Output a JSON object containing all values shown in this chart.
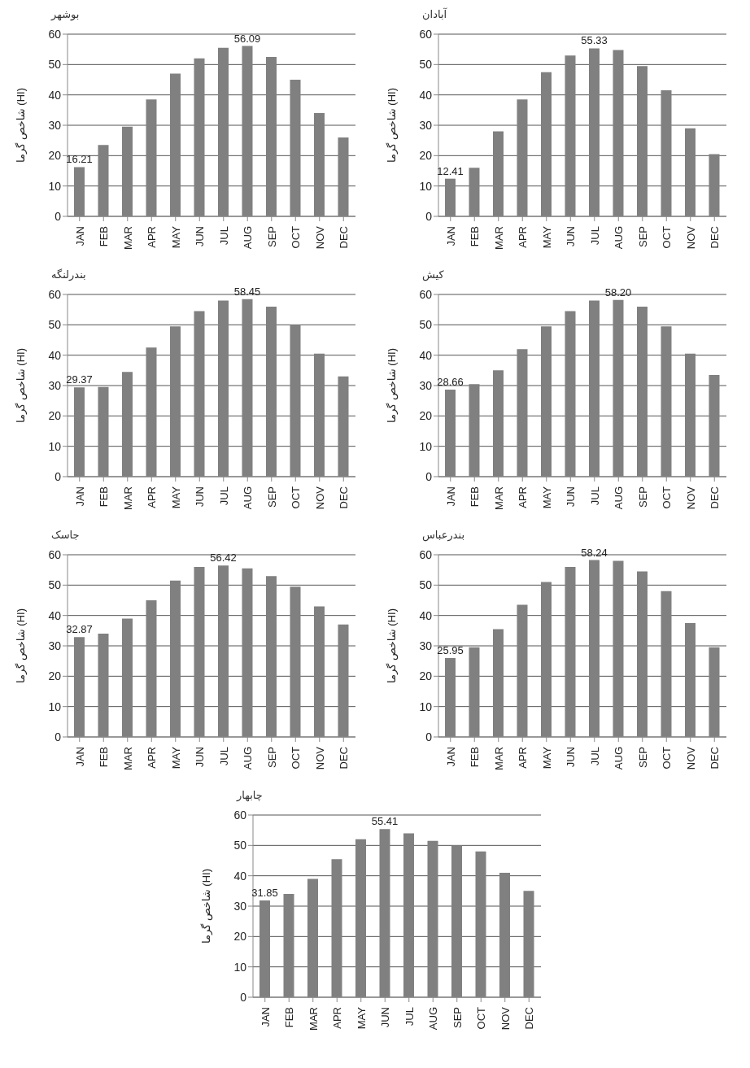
{
  "chart_data": [
    {
      "type": "bar",
      "title": "بوشهر",
      "ylabel": "شاخص گرما (HI)",
      "categories": [
        "JAN",
        "FEB",
        "MAR",
        "APR",
        "MAY",
        "JUN",
        "JUL",
        "AUG",
        "SEP",
        "OCT",
        "NOV",
        "DEC"
      ],
      "values": [
        16.21,
        23.5,
        29.5,
        38.5,
        47,
        52,
        55.5,
        56.09,
        52.5,
        45,
        34,
        26
      ],
      "value_labels": [
        "16.21",
        null,
        null,
        null,
        null,
        null,
        null,
        "56.09",
        null,
        null,
        null,
        null
      ],
      "color": "#808080",
      "ylim": [
        0,
        60
      ],
      "yticks": [
        0,
        10,
        20,
        30,
        40,
        50,
        60
      ],
      "grid": "y",
      "legend": false
    },
    {
      "type": "bar",
      "title": "آبادان",
      "ylabel": "شاخص گرما (HI)",
      "categories": [
        "JAN",
        "FEB",
        "MAR",
        "APR",
        "MAY",
        "JUN",
        "JUL",
        "AUG",
        "SEP",
        "OCT",
        "NOV",
        "DEC"
      ],
      "values": [
        12.41,
        16,
        28,
        38.5,
        47.5,
        53,
        55.33,
        54.8,
        49.5,
        41.5,
        29,
        20.5
      ],
      "value_labels": [
        "12.41",
        null,
        null,
        null,
        null,
        null,
        "55.33",
        null,
        null,
        null,
        null,
        null
      ],
      "color": "#808080",
      "ylim": [
        0,
        60
      ],
      "yticks": [
        0,
        10,
        20,
        30,
        40,
        50,
        60
      ],
      "grid": "y",
      "legend": false
    },
    {
      "type": "bar",
      "title": "بندرلنگه",
      "ylabel": "شاخص گرما (HI)",
      "categories": [
        "JAN",
        "FEB",
        "MAR",
        "APR",
        "MAY",
        "JUN",
        "JUL",
        "AUG",
        "SEP",
        "OCT",
        "NOV",
        "DEC"
      ],
      "values": [
        29.37,
        29.5,
        34.5,
        42.5,
        49.5,
        54.5,
        58,
        58.45,
        56,
        50,
        40.5,
        33
      ],
      "value_labels": [
        "29.37",
        null,
        null,
        null,
        null,
        null,
        null,
        "58.45",
        null,
        null,
        null,
        null
      ],
      "color": "#808080",
      "ylim": [
        0,
        60
      ],
      "yticks": [
        0,
        10,
        20,
        30,
        40,
        50,
        60
      ],
      "grid": "y",
      "legend": false
    },
    {
      "type": "bar",
      "title": "کیش",
      "ylabel": "شاخص گرما (HI)",
      "categories": [
        "JAN",
        "FEB",
        "MAR",
        "APR",
        "MAY",
        "JUN",
        "JUL",
        "AUG",
        "SEP",
        "OCT",
        "NOV",
        "DEC"
      ],
      "values": [
        28.66,
        30.5,
        35,
        42,
        49.5,
        54.5,
        58,
        58.2,
        56,
        49.5,
        40.5,
        33.5
      ],
      "value_labels": [
        "28.66",
        null,
        null,
        null,
        null,
        null,
        null,
        "58.20",
        null,
        null,
        null,
        null
      ],
      "color": "#808080",
      "ylim": [
        0,
        60
      ],
      "yticks": [
        0,
        10,
        20,
        30,
        40,
        50,
        60
      ],
      "grid": "y",
      "legend": false
    },
    {
      "type": "bar",
      "title": "جاسک",
      "ylabel": "شاخص گرما (HI)",
      "categories": [
        "JAN",
        "FEB",
        "MAR",
        "APR",
        "MAY",
        "JUN",
        "JUL",
        "AUG",
        "SEP",
        "OCT",
        "NOV",
        "DEC"
      ],
      "values": [
        32.87,
        34,
        39,
        45,
        51.5,
        56,
        56.42,
        55.5,
        53,
        49.5,
        43,
        37
      ],
      "value_labels": [
        "32.87",
        null,
        null,
        null,
        null,
        null,
        "56.42",
        null,
        null,
        null,
        null,
        null
      ],
      "color": "#808080",
      "ylim": [
        0,
        60
      ],
      "yticks": [
        0,
        10,
        20,
        30,
        40,
        50,
        60
      ],
      "grid": "y",
      "legend": false
    },
    {
      "type": "bar",
      "title": "بندرعباس",
      "ylabel": "شاخص گرما (HI)",
      "categories": [
        "JAN",
        "FEB",
        "MAR",
        "APR",
        "MAY",
        "JUN",
        "JUL",
        "AUG",
        "SEP",
        "OCT",
        "NOV",
        "DEC"
      ],
      "values": [
        25.95,
        29.5,
        35.5,
        43.5,
        51,
        56,
        58.24,
        58,
        54.5,
        48,
        37.5,
        29.5
      ],
      "value_labels": [
        "25.95",
        null,
        null,
        null,
        null,
        null,
        "58.24",
        null,
        null,
        null,
        null,
        null
      ],
      "color": "#808080",
      "ylim": [
        0,
        60
      ],
      "yticks": [
        0,
        10,
        20,
        30,
        40,
        50,
        60
      ],
      "grid": "y",
      "legend": false
    },
    {
      "type": "bar",
      "title": "چابهار",
      "ylabel": "شاخص گرما (HI)",
      "categories": [
        "JAN",
        "FEB",
        "MAR",
        "APR",
        "MAY",
        "JUN",
        "JUL",
        "AUG",
        "SEP",
        "OCT",
        "NOV",
        "DEC"
      ],
      "values": [
        31.85,
        34,
        39,
        45.5,
        52,
        55.41,
        54,
        51.5,
        50,
        48,
        41,
        35
      ],
      "value_labels": [
        "31.85",
        null,
        null,
        null,
        null,
        "55.41",
        null,
        null,
        null,
        null,
        null,
        null
      ],
      "color": "#808080",
      "ylim": [
        0,
        60
      ],
      "yticks": [
        0,
        10,
        20,
        30,
        40,
        50,
        60
      ],
      "grid": "y",
      "legend": false
    }
  ]
}
